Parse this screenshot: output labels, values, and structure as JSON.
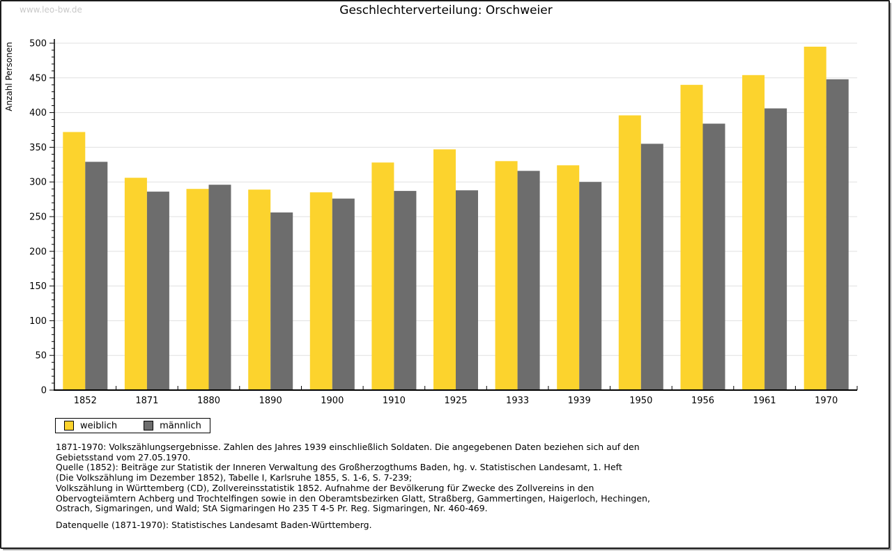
{
  "watermark": "www.leo-bw.de",
  "title": "Geschlechterverteilung: Orschweier",
  "chart_data": {
    "type": "bar",
    "title": "Geschlechterverteilung: Orschweier",
    "xlabel": "",
    "ylabel": "Anzahl Personen",
    "ylim": [
      0,
      500
    ],
    "ytick_step": 50,
    "minor_tick_step": 10,
    "grid": true,
    "legend_position": "bottom-left",
    "categories": [
      "1852",
      "1871",
      "1880",
      "1890",
      "1900",
      "1910",
      "1925",
      "1933",
      "1939",
      "1950",
      "1956",
      "1961",
      "1970"
    ],
    "series": [
      {
        "name": "weiblich",
        "color": "#FCD32D",
        "values": [
          372,
          306,
          290,
          289,
          285,
          328,
          347,
          330,
          324,
          396,
          440,
          454,
          495
        ]
      },
      {
        "name": "männlich",
        "color": "#6D6D6D",
        "values": [
          329,
          286,
          296,
          256,
          276,
          287,
          288,
          316,
          300,
          355,
          384,
          406,
          448
        ]
      }
    ],
    "gridline_color": "#e0e0e0",
    "axis_color": "#000000"
  },
  "footnotes": {
    "lines": [
      "1871-1970: Volkszählungsergebnisse. Zahlen des Jahres 1939 einschließlich Soldaten. Die angegebenen Daten beziehen sich auf den",
      "Gebietsstand vom 27.05.1970.",
      "Quelle (1852): Beiträge zur Statistik der Inneren Verwaltung des Großherzogthums Baden, hg. v. Statistischen Landesamt, 1. Heft",
      "(Die Volkszählung im Dezember 1852), Tabelle I, Karlsruhe 1855, S. 1-6, S. 7-239;",
      "Volkszählung in Württemberg (CD), Zollvereinsstatistik 1852. Aufnahme der Bevölkerung für Zwecke des Zollvereins in den",
      "Obervogteiämtern Achberg und Trochtelfingen sowie in den Oberamtsbezirken Glatt, Straßberg, Gammertingen, Haigerloch, Hechingen,",
      "Ostrach, Sigmaringen, und Wald; StA Sigmaringen Ho 235 T 4-5 Pr. Reg. Sigmaringen, Nr. 460-469."
    ],
    "datasource": "Datenquelle (1871-1970): Statistisches Landesamt Baden-Württemberg."
  }
}
